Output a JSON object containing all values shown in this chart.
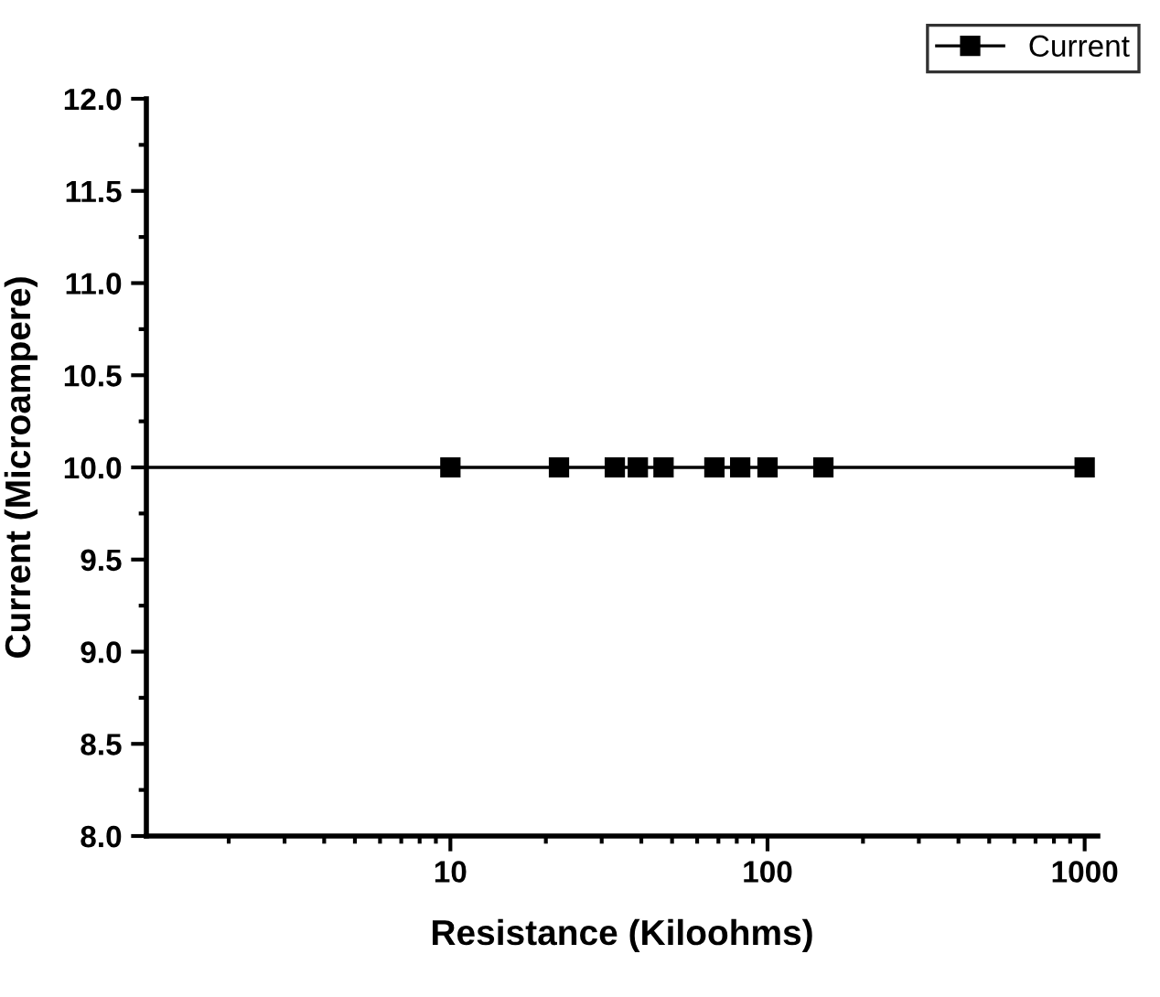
{
  "chart_data": {
    "type": "line",
    "xlabel": "Resistance (Kiloohms)",
    "ylabel": "Current (Microampere)",
    "log": "x",
    "xlim": [
      1.1,
      1100
    ],
    "xticks": [
      10,
      100,
      1000
    ],
    "ylim": [
      8.0,
      12.0
    ],
    "yticks": [
      {
        "value": 8.0,
        "label": "8.0"
      },
      {
        "value": 8.5,
        "label": "8.5"
      },
      {
        "value": 9.0,
        "label": "9.0"
      },
      {
        "value": 9.5,
        "label": "9.5"
      },
      {
        "value": 10.0,
        "label": "10.0"
      },
      {
        "value": 10.5,
        "label": "10.5"
      },
      {
        "value": 11.0,
        "label": "11.0"
      },
      {
        "value": 11.5,
        "label": "11.5"
      },
      {
        "value": 12.0,
        "label": "12.0"
      }
    ],
    "grid": false,
    "legend": "top right",
    "series": [
      {
        "name": "Current",
        "color": "#000000",
        "marker": "square",
        "x": [
          10,
          22,
          33,
          39,
          47,
          68,
          82,
          100,
          150,
          1000
        ],
        "values": [
          10,
          10,
          10,
          10,
          10,
          10,
          10,
          10,
          10,
          10
        ]
      },
      {
        "color": "#000000",
        "marker": "none",
        "x": [
          1.1,
          10
        ],
        "values": [
          10,
          10
        ]
      }
    ]
  }
}
